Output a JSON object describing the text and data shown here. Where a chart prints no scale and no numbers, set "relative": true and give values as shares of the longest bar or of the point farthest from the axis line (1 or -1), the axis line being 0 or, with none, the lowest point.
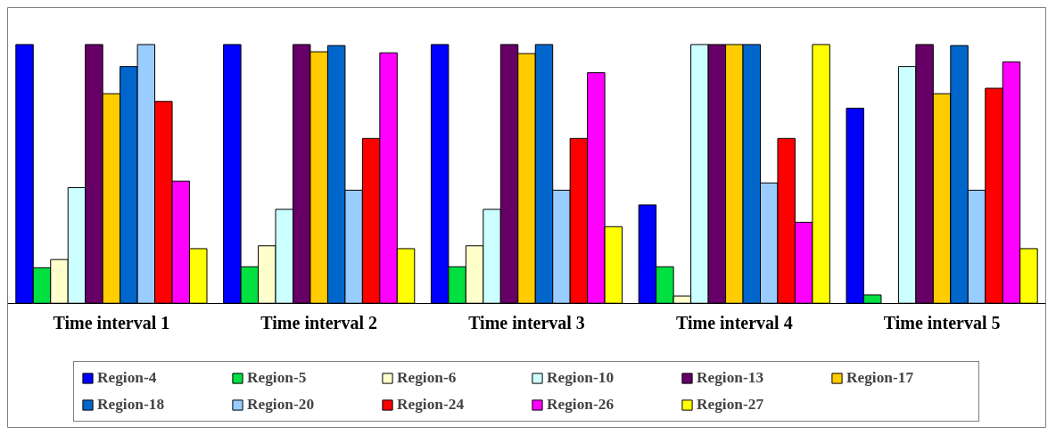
{
  "chart_data": {
    "type": "bar",
    "relative": true,
    "legend": "bottom",
    "categories": [
      "Time interval 1",
      "Time interval 2",
      "Time interval 3",
      "Time interval 4",
      "Time interval 5"
    ],
    "series": [
      {
        "name": "Region-4",
        "color": "#0000ff",
        "values": [
          1,
          1,
          1,
          0.38,
          0.754
        ]
      },
      {
        "name": "Region-5",
        "color": "#00e040",
        "values": [
          0.137,
          0.141,
          0.141,
          0.141,
          0.032
        ]
      },
      {
        "name": "Region-6",
        "color": "#ffffcc",
        "values": [
          0.169,
          0.222,
          0.222,
          0.028,
          null
        ]
      },
      {
        "name": "Region-10",
        "color": "#ccffff",
        "values": [
          0.447,
          0.363,
          0.363,
          1,
          0.915
        ]
      },
      {
        "name": "Region-13",
        "color": "#660066",
        "values": [
          1,
          1,
          1,
          1,
          1
        ]
      },
      {
        "name": "Region-17",
        "color": "#ffcc00",
        "values": [
          0.81,
          0.972,
          0.965,
          1,
          0.81
        ]
      },
      {
        "name": "Region-18",
        "color": "#0066cc",
        "values": [
          0.915,
          0.996,
          1,
          1,
          0.996
        ]
      },
      {
        "name": "Region-20",
        "color": "#99ccff",
        "values": [
          1,
          0.437,
          0.437,
          0.465,
          0.437
        ]
      },
      {
        "name": "Region-24",
        "color": "#ff0000",
        "values": [
          0.78,
          0.637,
          0.637,
          0.637,
          0.831
        ]
      },
      {
        "name": "Region-26",
        "color": "#ff00ff",
        "values": [
          0.472,
          0.968,
          0.891,
          0.313,
          0.933
        ]
      },
      {
        "name": "Region-27",
        "color": "#ffff00",
        "values": [
          0.211,
          0.211,
          0.296,
          1,
          0.211
        ]
      }
    ]
  }
}
